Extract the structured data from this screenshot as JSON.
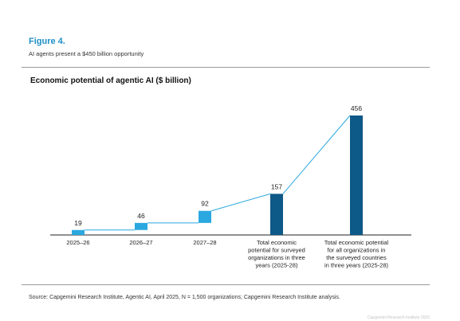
{
  "figure": {
    "label": "Figure 4.",
    "subtitle": "AI agents present a $450 billion opportunity"
  },
  "source": "Source: Capgemini Research Institute, Agentic AI, April 2025, N = 1,500 organizations; Capgemini Research Institute analysis.",
  "copyright": "Capgemini Research Institute 2025",
  "colors": {
    "light_bar": "#2ba8e0",
    "dark_bar": "#0d5987",
    "connector": "#2ba8e0",
    "title_accent": "#1e8fc6"
  },
  "chart_data": {
    "type": "bar",
    "title": "Economic potential of agentic AI ($ billion)",
    "categories": [
      [
        "2025–26"
      ],
      [
        "2026–27"
      ],
      [
        "2027–28"
      ],
      [
        "Total economic",
        "potential for surveyed",
        "organizations in three",
        "years (2025-28)"
      ],
      [
        "Total economic potential",
        "for all organizations in",
        "the surveyed countries",
        "in three years (2025-28)"
      ]
    ],
    "bars": [
      {
        "base": 0,
        "value": 19,
        "label": "19",
        "color": "light"
      },
      {
        "base": 19,
        "value": 46,
        "label": "46",
        "color": "light"
      },
      {
        "base": 46,
        "value": 92,
        "label": "92",
        "color": "light"
      },
      {
        "base": 0,
        "value": 157,
        "label": "157",
        "color": "dark"
      },
      {
        "base": 0,
        "value": 456,
        "label": "456",
        "color": "dark"
      }
    ],
    "grid": false
  }
}
